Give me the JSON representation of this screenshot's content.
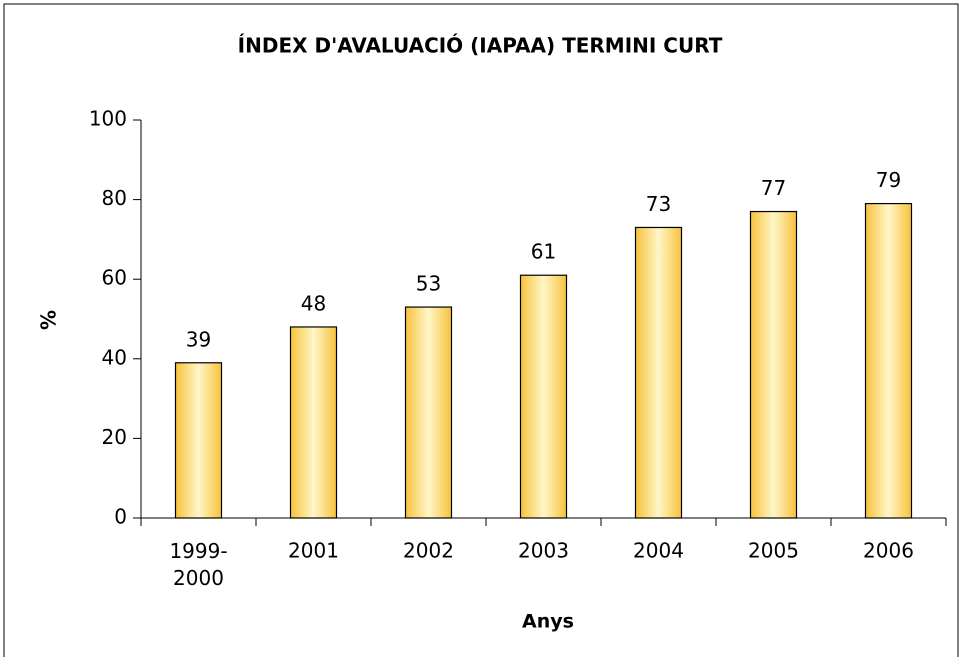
{
  "chart_data": {
    "type": "bar",
    "title": "ÍNDEX D'AVALUACIÓ (IAPAA) TERMINI CURT",
    "x_label": "Anys",
    "y_label": "%",
    "categories": [
      "1999-2000",
      "2001",
      "2002",
      "2003",
      "2004",
      "2005",
      "2006"
    ],
    "values": [
      39,
      48,
      53,
      61,
      73,
      77,
      79
    ],
    "color": "#f7c23c",
    "ylim": [
      0,
      100
    ],
    "yticks": [
      0,
      20,
      40,
      60,
      80,
      100
    ],
    "grid": false
  }
}
